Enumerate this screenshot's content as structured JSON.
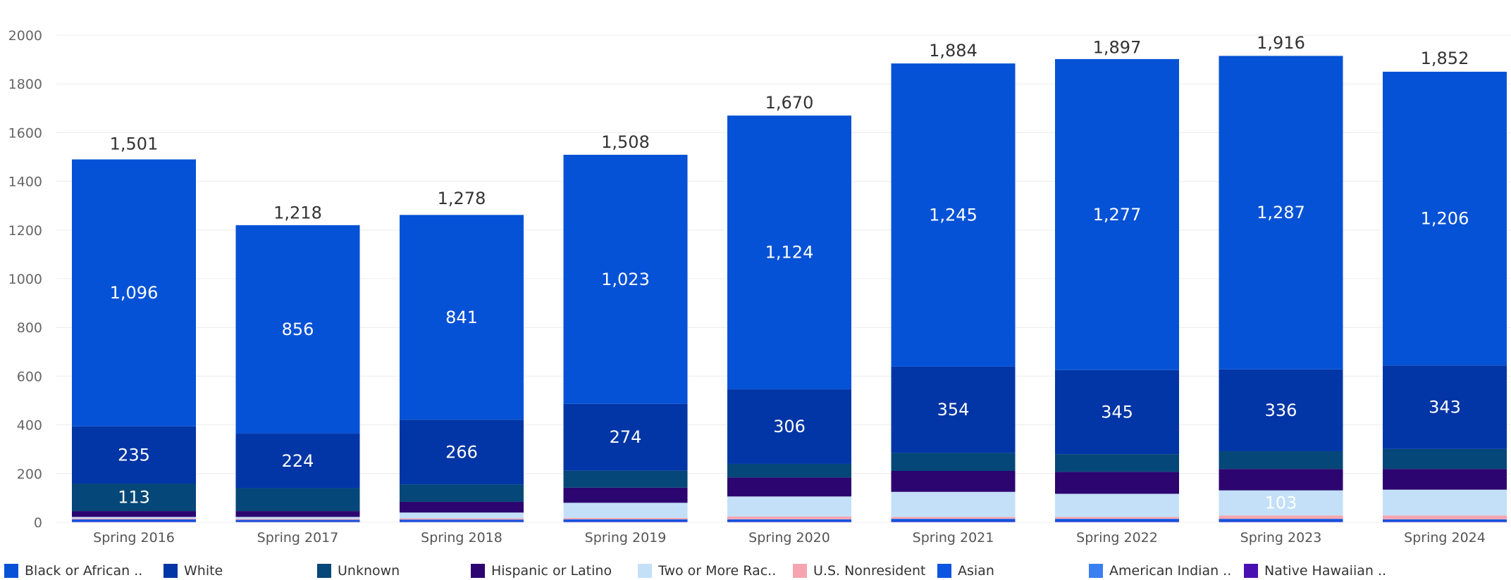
{
  "chart_data": {
    "type": "bar",
    "stacked": true,
    "categories": [
      "Spring 2016",
      "Spring 2017",
      "Spring 2018",
      "Spring 2019",
      "Spring 2020",
      "Spring 2021",
      "Spring 2022",
      "Spring 2023",
      "Spring 2024"
    ],
    "totals": [
      1501,
      1218,
      1278,
      1508,
      1670,
      1884,
      1897,
      1916,
      1852
    ],
    "total_labels": [
      "1,501",
      "1,218",
      "1,278",
      "1,508",
      "1,670",
      "1,884",
      "1,897",
      "1,916",
      "1,852"
    ],
    "ylim": [
      0,
      2000
    ],
    "yticks": [
      0,
      200,
      400,
      600,
      800,
      1000,
      1200,
      1400,
      1600,
      1800,
      2000
    ],
    "ytick_labels": [
      "0",
      "200",
      "400",
      "600",
      "800",
      "1000",
      "1200",
      "1400",
      "1600",
      "1800",
      "2000"
    ],
    "grid": true,
    "legend_position": "bottom",
    "series": [
      {
        "name": "American Indian ..",
        "color": "#3a7ff0",
        "values": [
          2,
          2,
          2,
          2,
          2,
          2,
          2,
          2,
          2
        ],
        "labels": [
          "",
          "",
          "",
          "",
          "",
          "",
          "",
          "",
          ""
        ]
      },
      {
        "name": "Native Hawaiian ..",
        "color": "#4a0fb0",
        "values": [
          2,
          2,
          2,
          2,
          2,
          2,
          2,
          2,
          2
        ],
        "labels": [
          "",
          "",
          "",
          "",
          "",
          "",
          "",
          "",
          ""
        ]
      },
      {
        "name": "Asian",
        "color": "#0b55e0",
        "values": [
          8,
          6,
          7,
          8,
          8,
          10,
          10,
          10,
          8
        ],
        "labels": [
          "",
          "",
          "",
          "",
          "",
          "",
          "",
          "",
          ""
        ]
      },
      {
        "name": "U.S. Nonresident",
        "color": "#f6a5b0",
        "values": [
          4,
          4,
          5,
          6,
          12,
          8,
          8,
          14,
          16
        ],
        "labels": [
          "",
          "",
          "",
          "",
          "",
          "",
          "",
          "",
          ""
        ]
      },
      {
        "name": "Two or More Rac..",
        "color": "#c3e0f8",
        "values": [
          6,
          8,
          24,
          62,
          82,
          103,
          95,
          103,
          106
        ],
        "labels": [
          "",
          "",
          "",
          "",
          "",
          "",
          "",
          "103",
          ""
        ]
      },
      {
        "name": "Hispanic or Latino",
        "color": "#2c0570",
        "values": [
          24,
          24,
          44,
          62,
          78,
          86,
          90,
          88,
          85
        ],
        "labels": [
          "",
          "",
          "",
          "",
          "",
          "",
          "",
          "",
          ""
        ]
      },
      {
        "name": "Unknown",
        "color": "#044778",
        "values": [
          113,
          94,
          71,
          70,
          56,
          74,
          73,
          73,
          82
        ],
        "labels": [
          "113",
          "",
          "",
          "",
          "",
          "",
          "",
          "",
          ""
        ]
      },
      {
        "name": "White",
        "color": "#0235a5",
        "values": [
          235,
          224,
          266,
          274,
          306,
          354,
          345,
          336,
          343
        ],
        "labels": [
          "235",
          "224",
          "266",
          "274",
          "306",
          "354",
          "345",
          "336",
          "343"
        ]
      },
      {
        "name": "Black or African ..",
        "color": "#0652d6",
        "values": [
          1096,
          856,
          841,
          1023,
          1124,
          1245,
          1277,
          1287,
          1206
        ],
        "labels": [
          "1,096",
          "856",
          "841",
          "1,023",
          "1,124",
          "1,245",
          "1,277",
          "1,287",
          "1,206"
        ]
      }
    ]
  },
  "legend": {
    "items": [
      {
        "label": "Black or African ..",
        "color": "#0652d6"
      },
      {
        "label": "White",
        "color": "#0235a5"
      },
      {
        "label": "Unknown",
        "color": "#044778"
      },
      {
        "label": "Hispanic or Latino",
        "color": "#2c0570"
      },
      {
        "label": "Two or More Rac..",
        "color": "#c3e0f8"
      },
      {
        "label": "U.S. Nonresident",
        "color": "#f6a5b0"
      },
      {
        "label": "Asian",
        "color": "#0b55e0"
      },
      {
        "label": "American Indian ..",
        "color": "#3a7ff0"
      },
      {
        "label": "Native Hawaiian ..",
        "color": "#4a0fb0"
      }
    ]
  }
}
